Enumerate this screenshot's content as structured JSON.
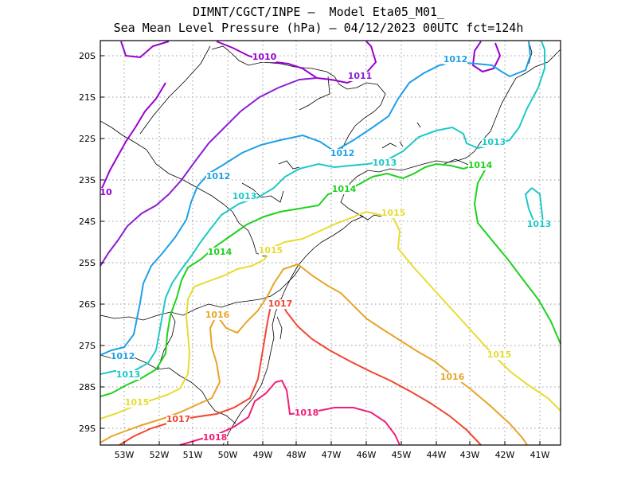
{
  "title_line1": "DIMNT/CGCT/INPE –  Model Eta05_M01_",
  "title_line2": "Sea Mean Level Pressure (hPa) – 04/12/2023 00UTC fct=124h",
  "lat_ticks": [
    "20S",
    "21S",
    "22S",
    "23S",
    "24S",
    "25S",
    "26S",
    "27S",
    "28S",
    "29S"
  ],
  "lon_ticks": [
    "53W",
    "52W",
    "51W",
    "50W",
    "49W",
    "48W",
    "47W",
    "46W",
    "45W",
    "44W",
    "43W",
    "42W",
    "41W"
  ],
  "contours": [
    {
      "level": "1010",
      "color": "#9a00cc",
      "labels": [
        "1010",
        "10"
      ]
    },
    {
      "level": "1011",
      "color": "#8a1fd6",
      "labels": [
        "1011"
      ]
    },
    {
      "level": "1012",
      "color": "#1ea0e6",
      "labels": [
        "1012",
        "1012",
        "1012",
        "1012"
      ]
    },
    {
      "level": "1013",
      "color": "#1ec8c8",
      "labels": [
        "1013",
        "1013",
        "1013",
        "1013",
        "1013"
      ]
    },
    {
      "level": "1014",
      "color": "#1ed21e",
      "labels": [
        "1014",
        "1014",
        "1014"
      ]
    },
    {
      "level": "1015",
      "color": "#e6dc32",
      "labels": [
        "1015",
        "1015",
        "1015",
        "1015"
      ]
    },
    {
      "level": "1016",
      "color": "#e6a528",
      "labels": [
        "1016",
        "1016"
      ]
    },
    {
      "level": "1017",
      "color": "#f04632",
      "labels": [
        "1017",
        "1017"
      ]
    },
    {
      "level": "1018",
      "color": "#f01e78",
      "labels": [
        "1018",
        "1018"
      ]
    }
  ]
}
